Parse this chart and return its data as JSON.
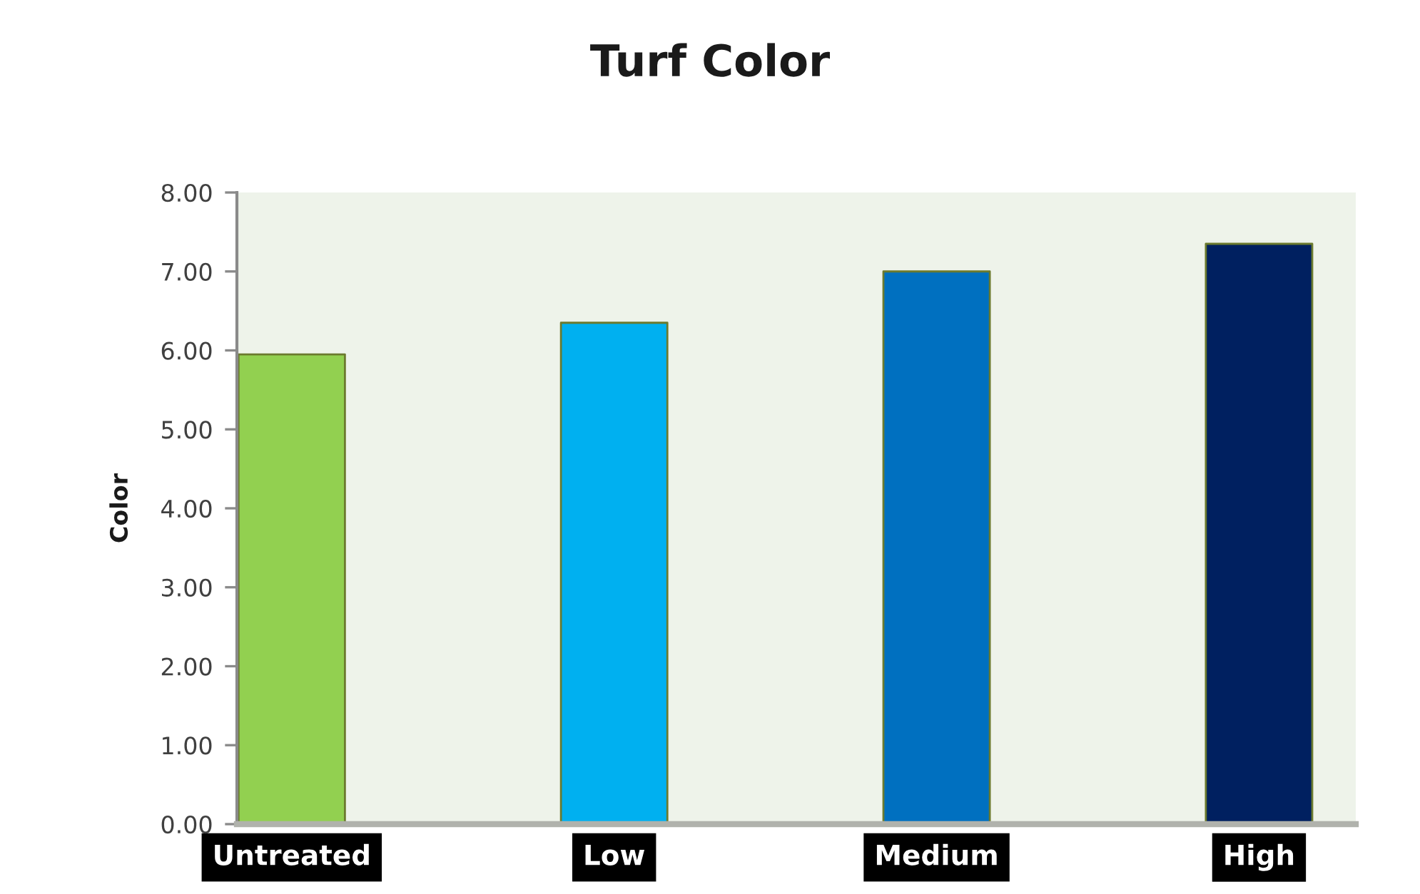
{
  "chart_data": {
    "type": "bar",
    "title": "Turf Color",
    "ylabel": "Color",
    "categories": [
      "Untreated",
      "Low",
      "Medium",
      "High"
    ],
    "values": [
      5.95,
      6.35,
      7.0,
      7.35
    ],
    "colors": [
      "#92d050",
      "#00b0f0",
      "#0070c0",
      "#002060"
    ],
    "ylim": [
      0,
      8
    ],
    "yticks": [
      {
        "value": 0,
        "label": "0.00"
      },
      {
        "value": 1,
        "label": "1.00"
      },
      {
        "value": 2,
        "label": "2.00"
      },
      {
        "value": 3,
        "label": "3.00"
      },
      {
        "value": 4,
        "label": "4.00"
      },
      {
        "value": 5,
        "label": "5.00"
      },
      {
        "value": 6,
        "label": "6.00"
      },
      {
        "value": 7,
        "label": "7.00"
      },
      {
        "value": 8,
        "label": "8.00"
      }
    ]
  }
}
